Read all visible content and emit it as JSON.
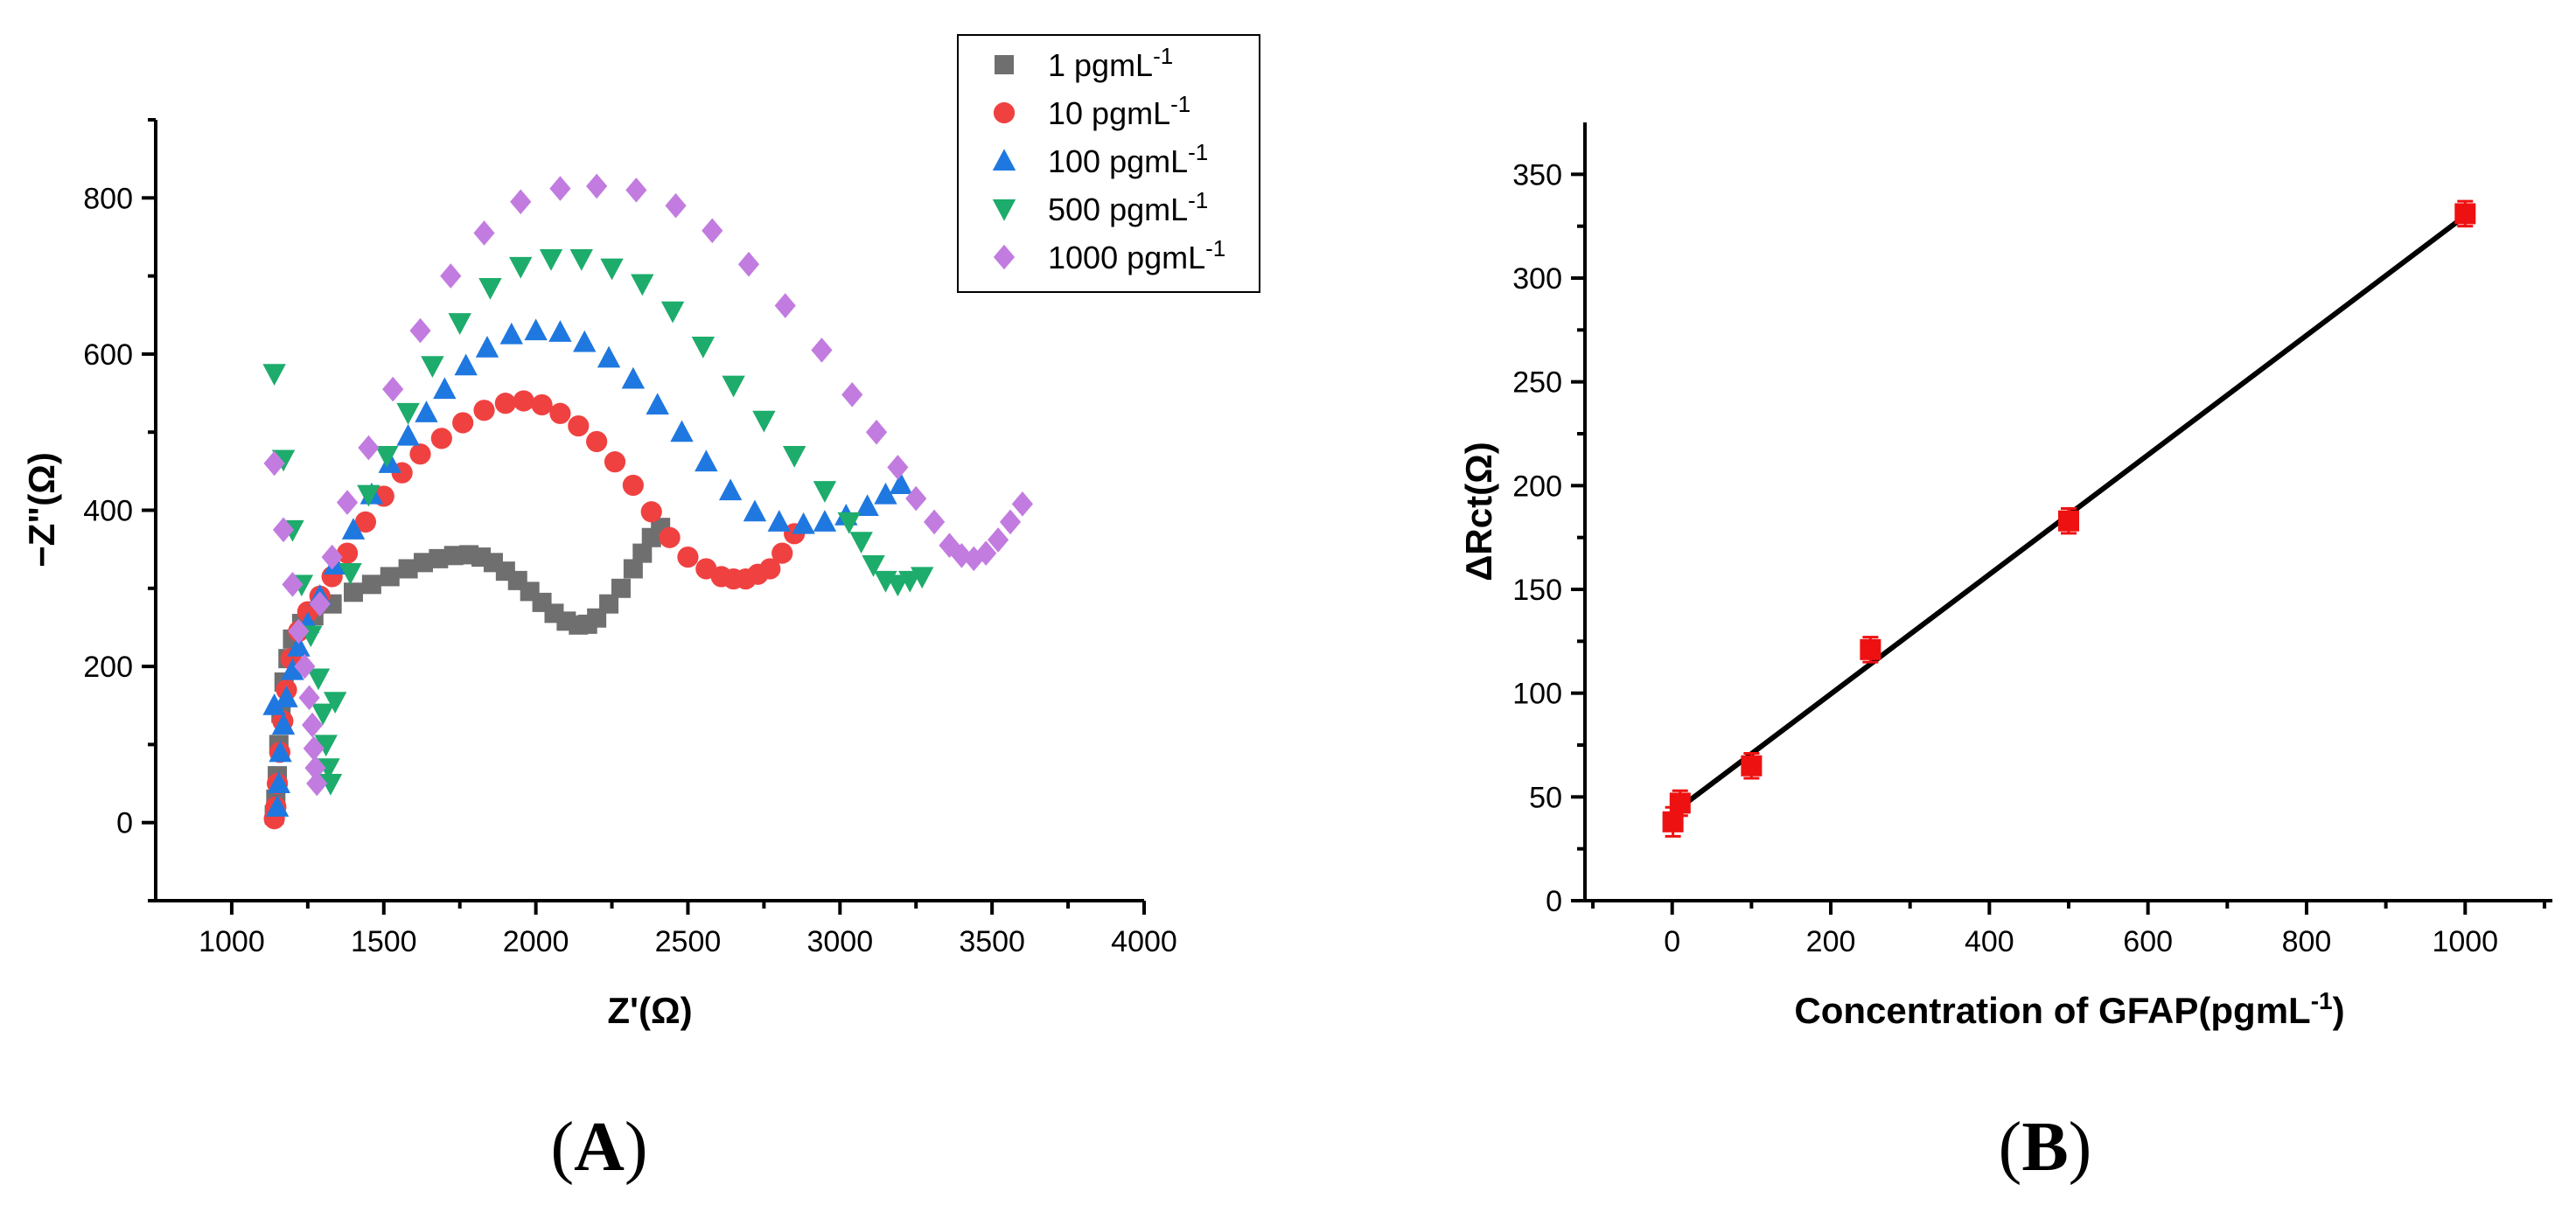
{
  "panels": {
    "A": {
      "label_open": "(",
      "label_letter": "A",
      "label_close": ")"
    },
    "B": {
      "label_open": "(",
      "label_letter": "B",
      "label_close": ")"
    }
  },
  "chart_data": [
    {
      "type": "scatter",
      "panel": "A",
      "title": "",
      "xlabel": "Z'(Ω)",
      "ylabel": "−Z\"(Ω)",
      "xlim": [
        750,
        4000
      ],
      "ylim": [
        -100,
        900
      ],
      "xticks": [
        1000,
        1500,
        2000,
        2500,
        3000,
        3500,
        4000
      ],
      "yticks": [
        0,
        200,
        400,
        600,
        800
      ],
      "legend_position": "top-right",
      "series": [
        {
          "name": "1 pgmL",
          "sup": "-1",
          "marker": "square",
          "color": "#6f6f6f",
          "points": [
            [
              1140,
              10
            ],
            [
              1145,
              30
            ],
            [
              1150,
              60
            ],
            [
              1155,
              100
            ],
            [
              1162,
              140
            ],
            [
              1172,
              180
            ],
            [
              1185,
              210
            ],
            [
              1200,
              235
            ],
            [
              1230,
              255
            ],
            [
              1270,
              265
            ],
            [
              1330,
              280
            ],
            [
              1400,
              295
            ],
            [
              1460,
              305
            ],
            [
              1520,
              315
            ],
            [
              1580,
              325
            ],
            [
              1630,
              333
            ],
            [
              1680,
              338
            ],
            [
              1730,
              342
            ],
            [
              1780,
              343
            ],
            [
              1820,
              340
            ],
            [
              1860,
              333
            ],
            [
              1900,
              322
            ],
            [
              1940,
              310
            ],
            [
              1980,
              296
            ],
            [
              2020,
              282
            ],
            [
              2060,
              268
            ],
            [
              2100,
              258
            ],
            [
              2140,
              253
            ],
            [
              2170,
              254
            ],
            [
              2200,
              262
            ],
            [
              2240,
              280
            ],
            [
              2280,
              300
            ],
            [
              2320,
              325
            ],
            [
              2350,
              345
            ],
            [
              2380,
              365
            ],
            [
              2410,
              378
            ]
          ]
        },
        {
          "name": "10 pgmL",
          "sup": "-1",
          "marker": "circle",
          "color": "#f04141",
          "points": [
            [
              1140,
              5
            ],
            [
              1145,
              20
            ],
            [
              1150,
              50
            ],
            [
              1158,
              90
            ],
            [
              1168,
              130
            ],
            [
              1180,
              170
            ],
            [
              1195,
              210
            ],
            [
              1220,
              245
            ],
            [
              1250,
              270
            ],
            [
              1290,
              290
            ],
            [
              1330,
              315
            ],
            [
              1380,
              345
            ],
            [
              1440,
              385
            ],
            [
              1500,
              418
            ],
            [
              1560,
              448
            ],
            [
              1620,
              472
            ],
            [
              1690,
              492
            ],
            [
              1760,
              512
            ],
            [
              1830,
              528
            ],
            [
              1900,
              537
            ],
            [
              1960,
              540
            ],
            [
              2020,
              535
            ],
            [
              2080,
              524
            ],
            [
              2140,
              508
            ],
            [
              2200,
              488
            ],
            [
              2260,
              462
            ],
            [
              2320,
              432
            ],
            [
              2380,
              398
            ],
            [
              2440,
              365
            ],
            [
              2500,
              340
            ],
            [
              2560,
              325
            ],
            [
              2610,
              315
            ],
            [
              2650,
              312
            ],
            [
              2690,
              312
            ],
            [
              2730,
              318
            ],
            [
              2770,
              325
            ],
            [
              2810,
              345
            ],
            [
              2850,
              370
            ]
          ]
        },
        {
          "name": "100 pgmL",
          "sup": "-1",
          "marker": "triangle-up",
          "color": "#1f78e0",
          "points": [
            [
              1140,
              150
            ],
            [
              1150,
              20
            ],
            [
              1155,
              50
            ],
            [
              1160,
              90
            ],
            [
              1170,
              125
            ],
            [
              1180,
              160
            ],
            [
              1200,
              195
            ],
            [
              1220,
              225
            ],
            [
              1250,
              255
            ],
            [
              1290,
              290
            ],
            [
              1340,
              330
            ],
            [
              1400,
              375
            ],
            [
              1460,
              420
            ],
            [
              1520,
              460
            ],
            [
              1580,
              495
            ],
            [
              1640,
              525
            ],
            [
              1700,
              555
            ],
            [
              1770,
              585
            ],
            [
              1840,
              608
            ],
            [
              1920,
              625
            ],
            [
              2000,
              630
            ],
            [
              2080,
              628
            ],
            [
              2160,
              615
            ],
            [
              2240,
              595
            ],
            [
              2320,
              568
            ],
            [
              2400,
              535
            ],
            [
              2480,
              500
            ],
            [
              2560,
              462
            ],
            [
              2640,
              425
            ],
            [
              2720,
              398
            ],
            [
              2800,
              385
            ],
            [
              2880,
              382
            ],
            [
              2950,
              385
            ],
            [
              3020,
              393
            ],
            [
              3090,
              405
            ],
            [
              3150,
              420
            ],
            [
              3200,
              433
            ]
          ]
        },
        {
          "name": "500 pgmL",
          "sup": "-1",
          "marker": "triangle-down",
          "color": "#1dac6b",
          "points": [
            [
              1140,
              575
            ],
            [
              1170,
              465
            ],
            [
              1200,
              375
            ],
            [
              1230,
              305
            ],
            [
              1260,
              240
            ],
            [
              1285,
              185
            ],
            [
              1300,
              140
            ],
            [
              1310,
              100
            ],
            [
              1318,
              70
            ],
            [
              1325,
              50
            ],
            [
              1340,
              155
            ],
            [
              1390,
              320
            ],
            [
              1450,
              420
            ],
            [
              1510,
              470
            ],
            [
              1580,
              525
            ],
            [
              1660,
              585
            ],
            [
              1750,
              640
            ],
            [
              1850,
              685
            ],
            [
              1950,
              712
            ],
            [
              2050,
              722
            ],
            [
              2150,
              722
            ],
            [
              2250,
              710
            ],
            [
              2350,
              690
            ],
            [
              2450,
              655
            ],
            [
              2550,
              610
            ],
            [
              2650,
              560
            ],
            [
              2750,
              515
            ],
            [
              2850,
              470
            ],
            [
              2950,
              425
            ],
            [
              3030,
              385
            ],
            [
              3070,
              360
            ],
            [
              3110,
              330
            ],
            [
              3150,
              310
            ],
            [
              3190,
              305
            ],
            [
              3230,
              310
            ],
            [
              3270,
              315
            ]
          ]
        },
        {
          "name": "1000 pgmL",
          "sup": "-1",
          "marker": "diamond",
          "color": "#c27ce0",
          "points": [
            [
              1140,
              460
            ],
            [
              1170,
              375
            ],
            [
              1200,
              305
            ],
            [
              1220,
              245
            ],
            [
              1240,
              200
            ],
            [
              1255,
              160
            ],
            [
              1265,
              125
            ],
            [
              1270,
              95
            ],
            [
              1275,
              70
            ],
            [
              1280,
              50
            ],
            [
              1290,
              280
            ],
            [
              1330,
              340
            ],
            [
              1380,
              410
            ],
            [
              1450,
              480
            ],
            [
              1530,
              555
            ],
            [
              1620,
              630
            ],
            [
              1720,
              700
            ],
            [
              1830,
              755
            ],
            [
              1950,
              795
            ],
            [
              2080,
              812
            ],
            [
              2200,
              815
            ],
            [
              2330,
              810
            ],
            [
              2460,
              790
            ],
            [
              2580,
              758
            ],
            [
              2700,
              715
            ],
            [
              2820,
              662
            ],
            [
              2940,
              605
            ],
            [
              3040,
              548
            ],
            [
              3120,
              500
            ],
            [
              3190,
              455
            ],
            [
              3250,
              415
            ],
            [
              3310,
              385
            ],
            [
              3360,
              355
            ],
            [
              3400,
              342
            ],
            [
              3440,
              338
            ],
            [
              3480,
              345
            ],
            [
              3520,
              362
            ],
            [
              3560,
              385
            ],
            [
              3600,
              408
            ]
          ]
        }
      ]
    },
    {
      "type": "scatter",
      "panel": "B",
      "title": "",
      "xlabel": "Concentration of GFAP(pgmL",
      "xlabel_sup": "-1",
      "xlabel_end": ")",
      "ylabel": "ΔRct(Ω)",
      "xlim": [
        -110,
        1110
      ],
      "ylim": [
        0,
        375
      ],
      "xticks": [
        0,
        200,
        400,
        600,
        800,
        1000
      ],
      "yticks": [
        0,
        50,
        100,
        150,
        200,
        250,
        300,
        350
      ],
      "marker": "square",
      "color": "#ee1111",
      "points": [
        {
          "x": 1,
          "y": 38,
          "err": 7
        },
        {
          "x": 10,
          "y": 47,
          "err": 6
        },
        {
          "x": 100,
          "y": 65,
          "err": 6
        },
        {
          "x": 250,
          "y": 121,
          "err": 6
        },
        {
          "x": 500,
          "y": 183,
          "err": 6
        },
        {
          "x": 1000,
          "y": 331,
          "err": 6
        }
      ],
      "fit_line": {
        "x": [
          0,
          1000
        ],
        "y": [
          42,
          330
        ]
      }
    }
  ]
}
